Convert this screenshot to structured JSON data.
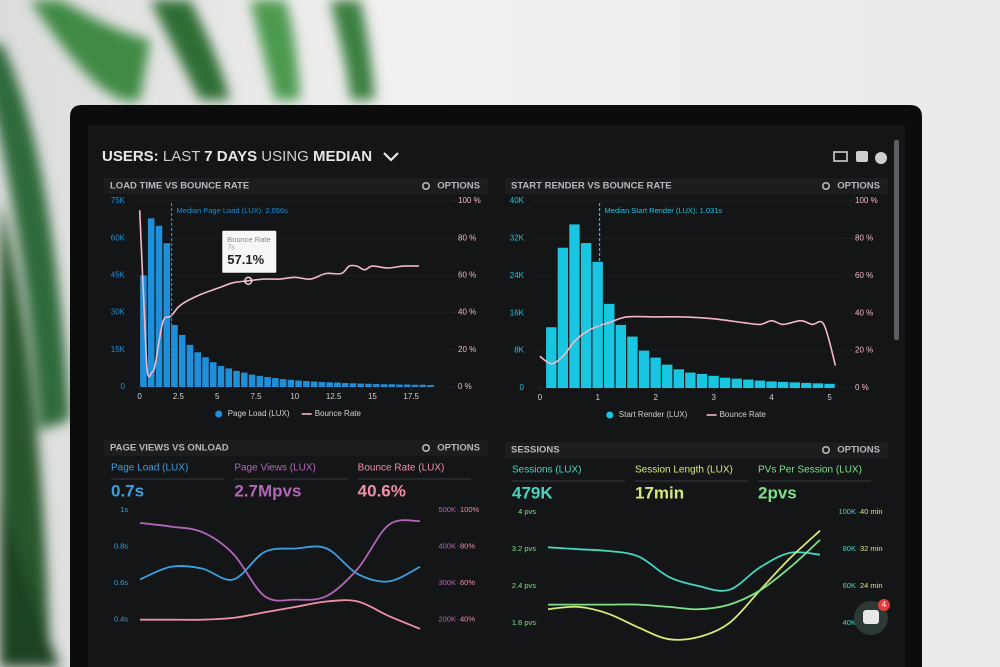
{
  "header": {
    "title_parts": [
      "USERS:",
      "LAST",
      "7 DAYS",
      "USING",
      "MEDIAN"
    ]
  },
  "widget": {
    "badge": "4"
  },
  "chart_data": [
    {
      "type": "histogram",
      "title": "LOAD TIME VS BOUNCE RATE",
      "options": "OPTIONS",
      "bins": [
        0,
        0.5,
        1,
        1.5,
        2,
        2.5,
        3,
        3.5,
        4,
        4.5,
        5,
        5.5,
        6,
        6.5,
        7,
        7.5,
        8,
        8.5,
        9,
        9.5,
        10,
        10.5,
        11,
        11.5,
        12,
        12.5,
        13,
        13.5,
        14,
        14.5,
        15,
        15.5,
        16,
        16.5,
        17,
        17.5,
        18,
        18.5,
        19
      ],
      "series": [
        {
          "name": "Page Load (LUX)",
          "color": "#1e8fd8",
          "values": [
            45000,
            68000,
            65000,
            58000,
            25000,
            21000,
            17000,
            14000,
            12000,
            10000,
            8500,
            7500,
            6500,
            5800,
            5000,
            4500,
            4000,
            3600,
            3200,
            2900,
            2600,
            2400,
            2200,
            2000,
            1900,
            1800,
            1600,
            1500,
            1400,
            1300,
            1200,
            1100,
            1100,
            1000,
            1000,
            900,
            900,
            800
          ]
        },
        {
          "name": "Bounce Rate",
          "color": "#f4b8c8",
          "axis": "y2",
          "x": [
            0,
            0.3,
            0.5,
            0.8,
            1,
            1.5,
            2,
            2.5,
            3,
            4,
            5,
            6,
            7,
            8,
            9,
            10,
            11,
            12,
            13,
            13.5,
            14,
            14.5,
            15,
            16,
            17,
            18
          ],
          "values": [
            95,
            40,
            8,
            8,
            12,
            35,
            38,
            43,
            46,
            50,
            53,
            56,
            57.1,
            58,
            58,
            59,
            58,
            61,
            61,
            65,
            65,
            63,
            65,
            64,
            65,
            65
          ]
        }
      ],
      "xlim": [
        -0.3,
        20
      ],
      "xticks": [
        0,
        2.5,
        5,
        7.5,
        10,
        12.5,
        15,
        17.5
      ],
      "ylim": [
        0,
        75000
      ],
      "yticks": [
        0,
        {
          "value": 15000,
          "label": "15K"
        },
        {
          "value": 30000,
          "label": "30K"
        },
        {
          "value": 45000,
          "label": "45K"
        },
        {
          "value": 60000,
          "label": "60K"
        },
        {
          "value": 75000,
          "label": "75K"
        }
      ],
      "y2lim": [
        0,
        100
      ],
      "y2ticks": [
        {
          "value": 0,
          "label": "0 %"
        },
        {
          "value": 20,
          "label": "20 %"
        },
        {
          "value": 40,
          "label": "40 %"
        },
        {
          "value": 60,
          "label": "60 %"
        },
        {
          "value": 80,
          "label": "80 %"
        },
        {
          "value": 100,
          "label": "100 %"
        }
      ],
      "annotation": {
        "text": "Median Page Load (LUX): 2.056s",
        "x": 2.056
      },
      "tooltip": {
        "title": "Bounce Rate",
        "subtitle": "7s",
        "label": "57.1%",
        "x": 7,
        "y": 57.1
      }
    },
    {
      "type": "histogram",
      "title": "START RENDER VS BOUNCE RATE",
      "options": "OPTIONS",
      "bins": [
        0.1,
        0.3,
        0.5,
        0.7,
        0.9,
        1.1,
        1.3,
        1.5,
        1.7,
        1.9,
        2.1,
        2.3,
        2.5,
        2.7,
        2.9,
        3.1,
        3.3,
        3.5,
        3.7,
        3.9,
        4.1,
        4.3,
        4.5,
        4.7,
        4.9,
        5.1
      ],
      "series": [
        {
          "name": "Start Render (LUX)",
          "color": "#18c6e2",
          "values": [
            13000,
            30000,
            35000,
            31000,
            27000,
            18000,
            13500,
            11000,
            8000,
            6500,
            5000,
            4000,
            3300,
            3000,
            2600,
            2200,
            2000,
            1800,
            1600,
            1400,
            1300,
            1200,
            1100,
            1000,
            900
          ]
        },
        {
          "name": "Bounce Rate",
          "color": "#f4b8c8",
          "axis": "y2",
          "x": [
            0,
            0.2,
            0.4,
            0.6,
            0.8,
            1,
            1.2,
            1.5,
            2,
            2.5,
            3,
            3.5,
            3.8,
            4,
            4.2,
            4.5,
            4.7,
            4.9,
            5.1
          ],
          "values": [
            17,
            13,
            17,
            25,
            30,
            33,
            35,
            38,
            38,
            38,
            37,
            35,
            34,
            36,
            34,
            36,
            34,
            34,
            12
          ]
        }
      ],
      "xlim": [
        -0.1,
        5.3
      ],
      "xticks": [
        0,
        1,
        2,
        3,
        4,
        5
      ],
      "ylim": [
        0,
        40000
      ],
      "yticks": [
        0,
        {
          "value": 8000,
          "label": "8K"
        },
        {
          "value": 16000,
          "label": "16K"
        },
        {
          "value": 24000,
          "label": "24K"
        },
        {
          "value": 32000,
          "label": "32K"
        },
        {
          "value": 40000,
          "label": "40K"
        }
      ],
      "y2lim": [
        0,
        100
      ],
      "y2ticks": [
        {
          "value": 0,
          "label": "0 %"
        },
        {
          "value": 20,
          "label": "20 %"
        },
        {
          "value": 40,
          "label": "40 %"
        },
        {
          "value": 60,
          "label": "60 %"
        },
        {
          "value": 80,
          "label": "80 %"
        },
        {
          "value": 100,
          "label": "100 %"
        }
      ],
      "annotation": {
        "text": "Median Start Render (LUX): 1.031s",
        "x": 1.031
      }
    },
    {
      "type": "line",
      "title": "PAGE VIEWS VS ONLOAD",
      "options": "OPTIONS",
      "series": [
        {
          "name": "Page Load (LUX)",
          "summary": "0.7s",
          "color": "#3aa0e0",
          "values": [
            0.62,
            0.69,
            0.68,
            0.62,
            0.77,
            0.79,
            0.79,
            0.65,
            0.61,
            0.69
          ]
        },
        {
          "name": "Page Views (LUX)",
          "summary": "2.7Mpvs",
          "color": "#b366b8",
          "axis": "y2",
          "values": [
            465000,
            455000,
            440000,
            380000,
            265000,
            255000,
            265000,
            340000,
            460000,
            470000
          ]
        },
        {
          "name": "Bounce Rate (LUX)",
          "summary": "40.6%",
          "color": "#f090a8",
          "axis": "y3",
          "values": [
            40,
            40,
            40,
            41,
            44,
            47,
            50,
            50,
            42,
            35
          ]
        }
      ],
      "ylim": [
        0.3,
        1.05
      ],
      "yticks": [
        {
          "value": 0.4,
          "label": "0.4s"
        },
        {
          "value": 0.6,
          "label": "0.6s"
        },
        {
          "value": 0.8,
          "label": "0.8s"
        },
        {
          "value": 1,
          "label": "1s"
        }
      ],
      "y2lim": [
        150000,
        525000
      ],
      "y2ticks": [
        {
          "value": 200000,
          "label": "200K"
        },
        {
          "value": 300000,
          "label": "300K"
        },
        {
          "value": 400000,
          "label": "400K"
        },
        {
          "value": 500000,
          "label": "500K"
        }
      ],
      "y3lim": [
        30,
        105
      ],
      "y3ticks": [
        {
          "value": 40,
          "label": "40%"
        },
        {
          "value": 60,
          "label": "60%"
        },
        {
          "value": 80,
          "label": "80%"
        },
        {
          "value": 100,
          "label": "100%"
        }
      ]
    },
    {
      "type": "line",
      "title": "SESSIONS",
      "options": "OPTIONS",
      "series": [
        {
          "name": "Sessions (LUX)",
          "summary": "479K",
          "color": "#45d6c0",
          "axis": "y2",
          "values": [
            81000,
            80000,
            79000,
            76000,
            65000,
            60000,
            58000,
            70000,
            78000,
            77000
          ]
        },
        {
          "name": "Session Length (LUX)",
          "summary": "17min",
          "color": "#d8e87a",
          "axis": "y3",
          "values": [
            19,
            19.5,
            18,
            15,
            12.5,
            13,
            16,
            23,
            30,
            36
          ]
        },
        {
          "name": "PVs Per Session (LUX)",
          "summary": "2pvs",
          "color": "#7fe08a",
          "values": [
            2.0,
            2.0,
            2.0,
            2.0,
            1.95,
            1.9,
            2.0,
            2.3,
            2.8,
            3.4
          ]
        }
      ],
      "ylim": [
        1.2,
        4.2
      ],
      "yticks": [
        {
          "value": 1.6,
          "label": "1.6 pvs"
        },
        {
          "value": 2.4,
          "label": "2.4 pvs"
        },
        {
          "value": 3.2,
          "label": "3.2 pvs"
        },
        {
          "value": 4,
          "label": "4 pvs"
        }
      ],
      "y2lim": [
        30000,
        105000
      ],
      "y2ticks": [
        {
          "value": 40000,
          "label": "40K"
        },
        {
          "value": 60000,
          "label": "60K"
        },
        {
          "value": 80000,
          "label": "80K"
        },
        {
          "value": 100000,
          "label": "100K"
        }
      ],
      "y3lim": [
        12,
        42
      ],
      "y3ticks": [
        {
          "value": 24,
          "label": "24 min"
        },
        {
          "value": 32,
          "label": "32 min"
        },
        {
          "value": 40,
          "label": "40 min"
        }
      ]
    }
  ]
}
